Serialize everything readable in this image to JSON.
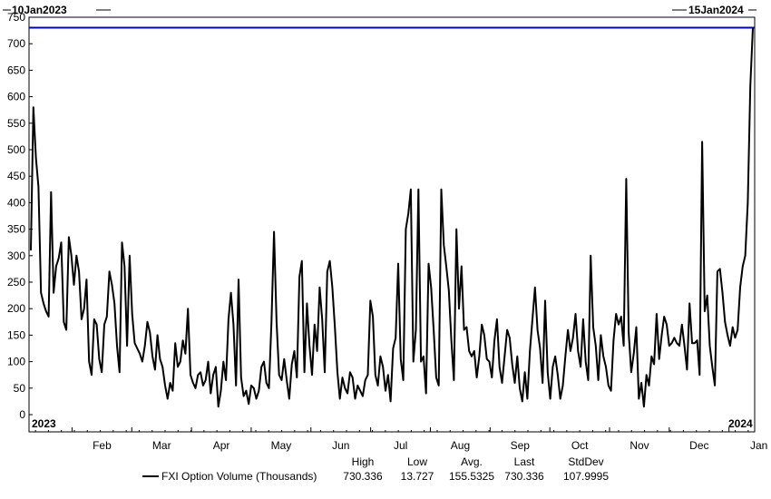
{
  "chart_data": {
    "type": "line",
    "start_label": "10Jan2023",
    "end_label": "15Jan2024",
    "year_start_label": "2023",
    "year_end_label": "2024",
    "y_ticks": [
      0,
      50,
      100,
      150,
      200,
      250,
      300,
      350,
      400,
      450,
      500,
      550,
      600,
      650,
      700,
      750
    ],
    "ylim": [
      0,
      750
    ],
    "grid": false,
    "month_labels": [
      "Feb",
      "Mar",
      "Apr",
      "May",
      "Jun",
      "Jul",
      "Aug",
      "Sep",
      "Oct",
      "Nov",
      "Dec",
      "Jan"
    ],
    "reference_line": {
      "value": 730.336,
      "color": "#0000cc"
    },
    "series": [
      {
        "name": "FXI Option Volume (Thousands)",
        "color": "#000000",
        "values": [
          310,
          580,
          485,
          430,
          230,
          210,
          195,
          185,
          420,
          230,
          280,
          295,
          325,
          175,
          160,
          335,
          300,
          245,
          300,
          270,
          180,
          200,
          255,
          100,
          75,
          180,
          170,
          105,
          80,
          170,
          185,
          270,
          245,
          210,
          130,
          80,
          325,
          280,
          130,
          300,
          190,
          135,
          125,
          115,
          100,
          130,
          175,
          155,
          110,
          85,
          150,
          105,
          90,
          55,
          30,
          60,
          45,
          135,
          90,
          100,
          140,
          115,
          200,
          75,
          60,
          50,
          75,
          80,
          55,
          65,
          100,
          40,
          75,
          90,
          15,
          45,
          100,
          65,
          180,
          230,
          170,
          55,
          255,
          70,
          35,
          45,
          20,
          55,
          50,
          30,
          45,
          90,
          100,
          60,
          50,
          175,
          345,
          175,
          75,
          65,
          105,
          65,
          30,
          95,
          120,
          70,
          260,
          290,
          80,
          210,
          130,
          75,
          170,
          120,
          240,
          180,
          80,
          270,
          290,
          240,
          165,
          80,
          30,
          70,
          50,
          40,
          80,
          70,
          30,
          55,
          45,
          35,
          65,
          75,
          215,
          185,
          75,
          55,
          110,
          90,
          45,
          75,
          25,
          125,
          145,
          285,
          105,
          65,
          350,
          380,
          425,
          100,
          160,
          425,
          100,
          110,
          40,
          285,
          240,
          160,
          70,
          55,
          425,
          320,
          280,
          235,
          140,
          65,
          350,
          200,
          280,
          160,
          165,
          120,
          110,
          120,
          70,
          110,
          170,
          150,
          105,
          100,
          70,
          140,
          180,
          90,
          60,
          110,
          160,
          145,
          95,
          60,
          110,
          50,
          25,
          80,
          30,
          120,
          180,
          240,
          160,
          125,
          60,
          215,
          80,
          30,
          90,
          110,
          75,
          30,
          55,
          110,
          160,
          120,
          145,
          190,
          120,
          90,
          180,
          100,
          65,
          300,
          165,
          130,
          65,
          150,
          110,
          90,
          55,
          45,
          140,
          190,
          170,
          185,
          130,
          445,
          155,
          80,
          115,
          165,
          30,
          60,
          15,
          75,
          55,
          110,
          95,
          190,
          105,
          150,
          185,
          170,
          130,
          135,
          145,
          135,
          130,
          170,
          130,
          85,
          210,
          135,
          135,
          140,
          75,
          515,
          195,
          225,
          130,
          90,
          55,
          270,
          275,
          230,
          175,
          150,
          130,
          165,
          145,
          160,
          240,
          280,
          300,
          400,
          620,
          730.336
        ]
      }
    ],
    "stats": {
      "headers": [
        "High",
        "Low",
        "Avg.",
        "Last",
        "StdDev"
      ],
      "values": [
        "730.336",
        "13.727",
        "155.5325",
        "730.336",
        "107.9995"
      ]
    }
  }
}
